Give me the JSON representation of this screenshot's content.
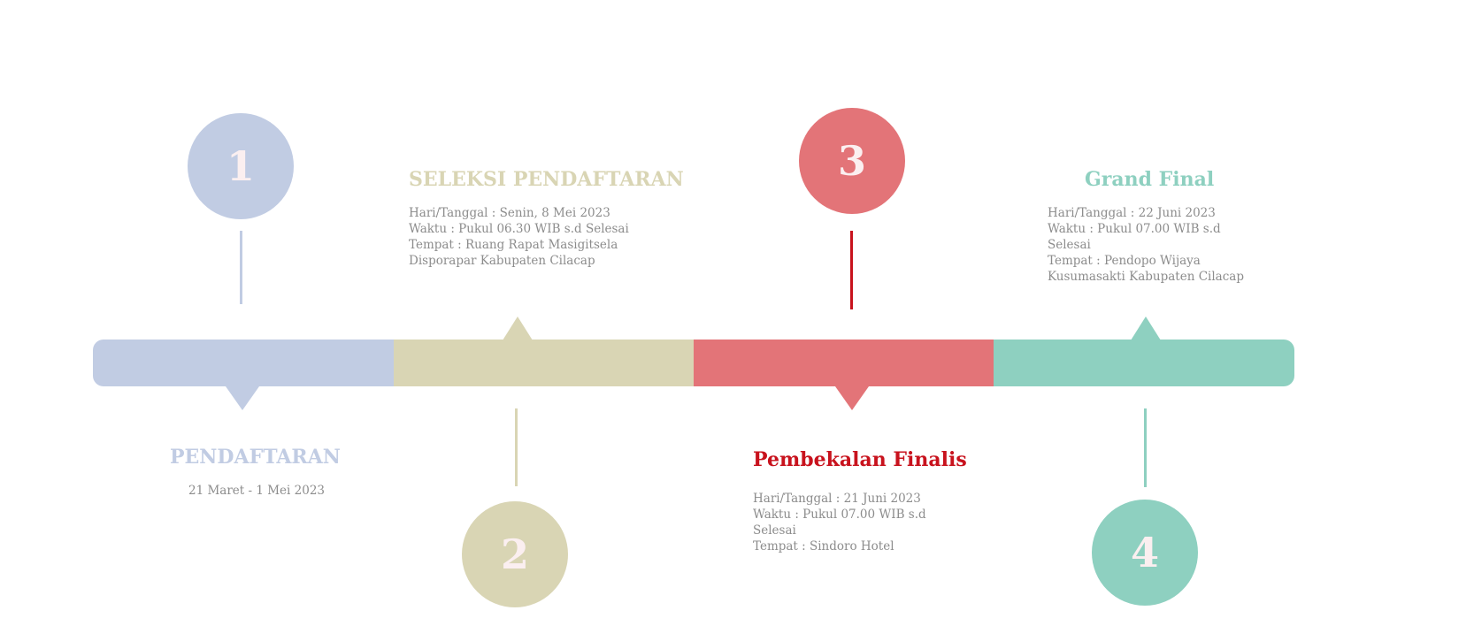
{
  "colors": {
    "blue": "#c1cce3",
    "khaki": "#d9d5b4",
    "red": "#e37478",
    "red_text": "#c8121d",
    "teal": "#8ed0c0",
    "text_gray": "#8c8c8c"
  },
  "stages": [
    {
      "number": "1",
      "title": "PENDAFTARAN",
      "lines": [
        "21 Maret - 1 Mei 2023"
      ]
    },
    {
      "number": "2",
      "title": "SELEKSI PENDAFTARAN",
      "lines": [
        "Hari/Tanggal : Senin, 8 Mei 2023",
        "Waktu : Pukul 06.30 WIB s.d Selesai",
        "Tempat : Ruang Rapat Masigitsela",
        "Disporapar Kabupaten Cilacap"
      ]
    },
    {
      "number": "3",
      "title": "Pembekalan Finalis",
      "lines": [
        "Hari/Tanggal : 21 Juni 2023",
        "Waktu : Pukul 07.00 WIB s.d",
        "Selesai",
        "Tempat : Sindoro Hotel"
      ]
    },
    {
      "number": "4",
      "title": "Grand Final",
      "lines": [
        "Hari/Tanggal : 22 Juni 2023",
        "Waktu : Pukul 07.00 WIB s.d",
        "Selesai",
        "Tempat : Pendopo Wijaya",
        "Kusumasakti Kabupaten Cilacap"
      ]
    }
  ]
}
